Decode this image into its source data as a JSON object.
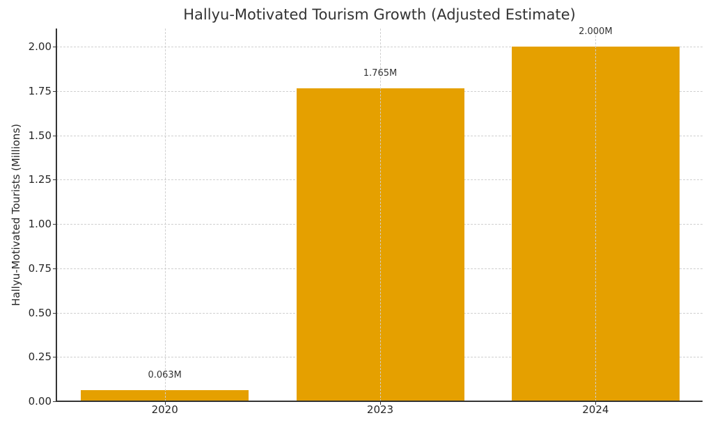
{
  "chart_data": {
    "type": "bar",
    "title": "Hallyu-Motivated Tourism Growth (Adjusted Estimate)",
    "xlabel": "",
    "ylabel": "Hallyu-Motivated Tourists (Millions)",
    "categories": [
      "2020",
      "2023",
      "2024"
    ],
    "values": [
      0.063,
      1.765,
      2.0
    ],
    "value_labels": [
      "0.063M",
      "1.765M",
      "2.000M"
    ],
    "ylim": [
      0,
      2.1
    ],
    "yticks": [
      "0.00",
      "0.25",
      "0.50",
      "0.75",
      "1.00",
      "1.25",
      "1.50",
      "1.75",
      "2.00"
    ],
    "grid": true,
    "legend": null,
    "bar_color": "#e5a000"
  }
}
